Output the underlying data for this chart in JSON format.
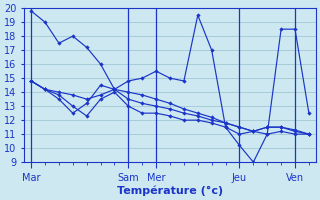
{
  "xlabel": "Température (°c)",
  "bg_color": "#cde8f0",
  "grid_color": "#a8cdd8",
  "line_color": "#1a35c8",
  "tick_labels": [
    "Mar",
    "Sam",
    "Mer",
    "Jeu",
    "Ven"
  ],
  "ylim": [
    9,
    20
  ],
  "yticks": [
    9,
    10,
    11,
    12,
    13,
    14,
    15,
    16,
    17,
    18,
    19,
    20
  ],
  "n_points": 21,
  "label_x_positions": [
    0,
    7,
    9,
    15,
    19
  ],
  "series": [
    [
      19.8,
      19.0,
      17.5,
      18.0,
      17.2,
      16.0,
      14.2,
      14.8,
      15.0,
      15.5,
      15.0,
      14.8,
      19.5,
      17.0,
      11.5,
      10.2,
      9.0,
      11.0,
      18.5,
      18.5,
      12.5
    ],
    [
      14.8,
      14.2,
      13.8,
      13.0,
      12.3,
      13.5,
      14.0,
      13.0,
      12.5,
      12.5,
      12.3,
      12.0,
      12.0,
      11.8,
      11.5,
      11.0,
      11.2,
      11.5,
      11.5,
      11.3,
      11.0
    ],
    [
      14.8,
      14.2,
      14.0,
      13.8,
      13.5,
      13.8,
      14.2,
      13.5,
      13.2,
      13.0,
      12.8,
      12.5,
      12.3,
      12.0,
      11.8,
      11.5,
      11.2,
      11.5,
      11.5,
      11.2,
      11.0
    ],
    [
      14.8,
      14.2,
      13.5,
      12.5,
      13.2,
      14.5,
      14.2,
      14.0,
      13.8,
      13.5,
      13.2,
      12.8,
      12.5,
      12.2,
      11.8,
      11.5,
      11.2,
      11.0,
      11.2,
      11.0,
      11.0
    ]
  ]
}
